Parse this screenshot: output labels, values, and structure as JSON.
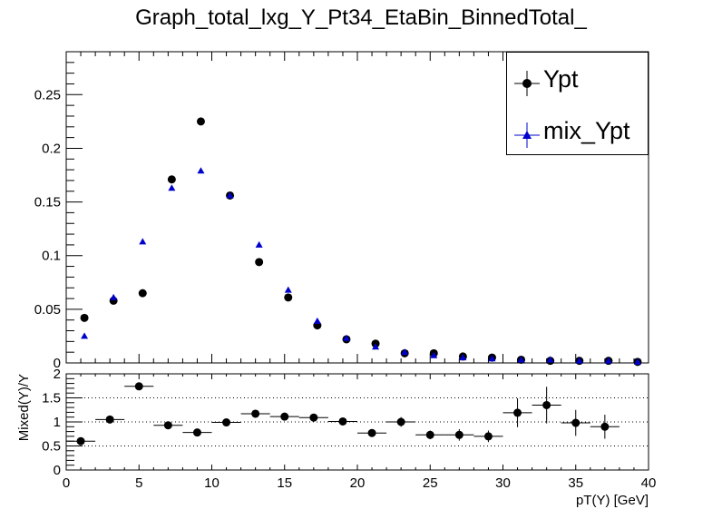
{
  "title": "Graph_total_lxg_Y_Pt34_EtaBin_BinnedTotal_",
  "legend": {
    "entries": [
      {
        "label": "Ypt",
        "color": "#000000",
        "marker": "circle"
      },
      {
        "label": "mix_Ypt",
        "color": "#0000cc",
        "marker": "triangle"
      }
    ]
  },
  "chart_data": [
    {
      "type": "scatter",
      "panel": "top",
      "xlim": [
        0,
        40
      ],
      "ylim": [
        0,
        0.29
      ],
      "yticks": [
        0,
        0.05,
        0.1,
        0.15,
        0.2,
        0.25
      ],
      "ytick_labels": [
        "0",
        "0.05",
        "0.1",
        "0.15",
        "0.2",
        "0.25"
      ],
      "series": [
        {
          "name": "Ypt",
          "color": "#000000",
          "marker": "circle",
          "x": [
            1.25,
            3.25,
            5.25,
            7.25,
            9.25,
            11.25,
            13.25,
            15.25,
            17.25,
            19.25,
            21.25,
            23.25,
            25.25,
            27.25,
            29.25,
            31.25,
            33.25,
            35.25,
            37.25,
            39.25
          ],
          "y": [
            0.042,
            0.058,
            0.065,
            0.171,
            0.225,
            0.156,
            0.094,
            0.061,
            0.035,
            0.022,
            0.018,
            0.009,
            0.009,
            0.006,
            0.005,
            0.003,
            0.002,
            0.002,
            0.002,
            0.001
          ]
        },
        {
          "name": "mix_Ypt",
          "color": "#0000cc",
          "marker": "triangle",
          "x": [
            1.25,
            3.25,
            5.25,
            7.25,
            9.25,
            11.25,
            13.25,
            15.25,
            17.25,
            19.25,
            21.25,
            23.25,
            25.25,
            27.25,
            29.25,
            31.25,
            33.25,
            35.25,
            37.25,
            39.25
          ],
          "y": [
            0.025,
            0.061,
            0.113,
            0.163,
            0.179,
            0.156,
            0.11,
            0.068,
            0.039,
            0.023,
            0.015,
            0.01,
            0.007,
            0.005,
            0.004,
            0.003,
            0.003,
            0.002,
            0.002,
            0.001
          ]
        }
      ]
    },
    {
      "type": "scatter",
      "panel": "ratio",
      "xlim": [
        0,
        40
      ],
      "ylim": [
        0,
        2
      ],
      "xticks": [
        0,
        5,
        10,
        15,
        20,
        25,
        30,
        35,
        40
      ],
      "xtick_labels": [
        "0",
        "5",
        "10",
        "15",
        "20",
        "25",
        "30",
        "35",
        "40"
      ],
      "yticks": [
        0,
        0.5,
        1,
        1.5,
        2
      ],
      "ytick_labels": [
        "0",
        "0.5",
        "1",
        "1.5",
        "2"
      ],
      "gridlines_y": [
        0.5,
        1,
        1.5
      ],
      "xlabel": "p_{T}(Υ) [GeV]",
      "ylabel": "Mixed(Υ)/Υ",
      "series": [
        {
          "name": "ratio",
          "color": "#000000",
          "marker": "circle",
          "x": [
            1,
            3,
            5,
            7,
            9,
            11,
            13,
            15,
            17,
            19,
            21,
            23,
            25,
            27,
            29,
            31,
            33,
            35,
            37
          ],
          "y": [
            0.6,
            1.05,
            1.74,
            0.93,
            0.78,
            0.99,
            1.17,
            1.11,
            1.09,
            1.01,
            0.77,
            1.0,
            0.73,
            0.73,
            0.7,
            1.19,
            1.35,
            0.98,
            0.9
          ],
          "xerr": [
            1,
            1,
            1,
            1,
            1,
            1,
            1,
            1,
            1,
            1,
            1,
            1,
            1,
            1,
            1,
            1,
            1,
            1,
            1
          ],
          "yerr": [
            0.03,
            0.03,
            0.04,
            0.03,
            0.03,
            0.03,
            0.04,
            0.04,
            0.05,
            0.05,
            0.07,
            0.1,
            0.09,
            0.12,
            0.12,
            0.3,
            0.38,
            0.27,
            0.25
          ]
        }
      ]
    }
  ]
}
